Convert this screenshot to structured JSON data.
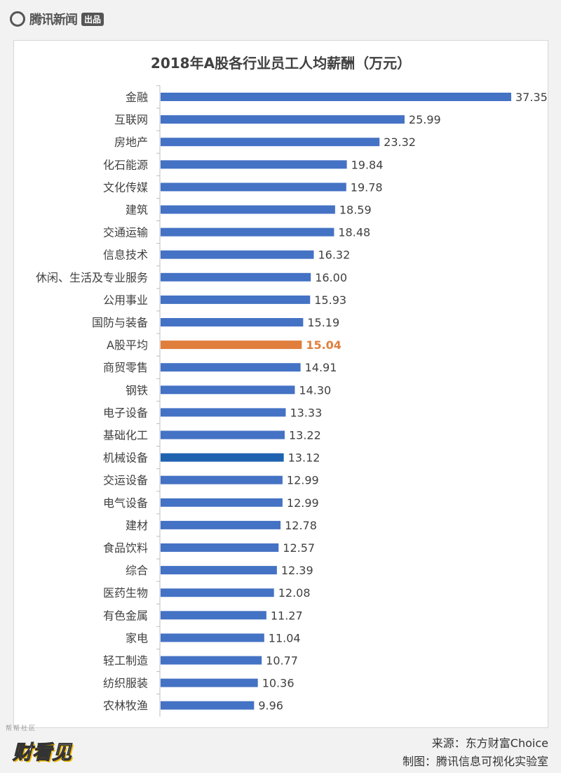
{
  "header": {
    "logo_text": "腾讯新闻",
    "logo_tag": "出品"
  },
  "watermark": {
    "small": "帮帮社区",
    "big": "财看见"
  },
  "source": {
    "line1": "来源：东方财富Choice",
    "line2": "制图：腾讯信息可视化实验室"
  },
  "colors": {
    "bar": "#4472C4",
    "highlight": "#E07E3C",
    "emphasis": "#1F63B0",
    "axis": "#BFBFBF"
  },
  "chart_data": {
    "type": "bar",
    "orientation": "horizontal",
    "title": "2018年A股各行业员工人均薪酬（万元）",
    "categories": [
      "金融",
      "互联网",
      "房地产",
      "化石能源",
      "文化传媒",
      "建筑",
      "交通运输",
      "信息技术",
      "休闲、生活及专业服务",
      "公用事业",
      "国防与装备",
      "A股平均",
      "商贸零售",
      "钢铁",
      "电子设备",
      "基础化工",
      "机械设备",
      "交运设备",
      "电气设备",
      "建材",
      "食品饮料",
      "综合",
      "医药生物",
      "有色金属",
      "家电",
      "轻工制造",
      "纺织服装",
      "农林牧渔"
    ],
    "values": [
      37.35,
      25.99,
      23.32,
      19.84,
      19.78,
      18.59,
      18.48,
      16.32,
      16.0,
      15.93,
      15.19,
      15.04,
      14.91,
      14.3,
      13.33,
      13.22,
      13.12,
      12.99,
      12.99,
      12.78,
      12.57,
      12.39,
      12.08,
      11.27,
      11.04,
      10.77,
      10.36,
      9.96
    ],
    "value_labels": [
      "37.35",
      "25.99",
      "23.32",
      "19.84",
      "19.78",
      "18.59",
      "18.48",
      "16.32",
      "16.00",
      "15.93",
      "15.19",
      "15.04",
      "14.91",
      "14.30",
      "13.33",
      "13.22",
      "13.12",
      "12.99",
      "12.99",
      "12.78",
      "12.57",
      "12.39",
      "12.08",
      "11.27",
      "11.04",
      "10.77",
      "10.36",
      "9.96"
    ],
    "highlight_category": "A股平均",
    "emphasis_category": "机械设备",
    "xlim": [
      0,
      37.35
    ],
    "grid": false,
    "legend": "none"
  }
}
